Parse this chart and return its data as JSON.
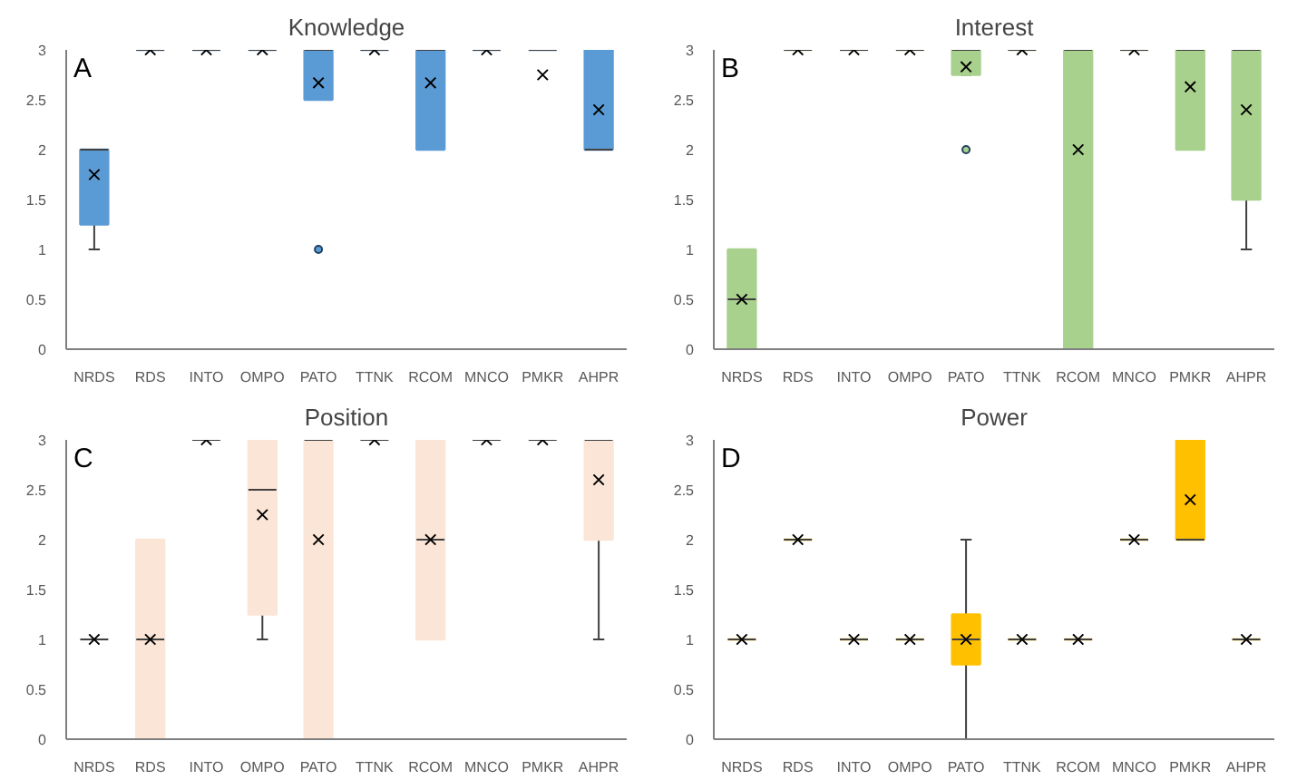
{
  "chart_data": [
    {
      "type": "box",
      "title": "Knowledge",
      "annotations": [
        "A"
      ],
      "color": "#5b9bd5",
      "categories": [
        "NRDS",
        "RDS",
        "INTO",
        "OMPO",
        "PATO",
        "TTNK",
        "RCOM",
        "MNCO",
        "PMKR",
        "AHPR"
      ],
      "ylim": [
        0,
        3
      ],
      "yticks": [
        0,
        0.5,
        1,
        1.5,
        2,
        2.5,
        3
      ],
      "marker": "cross",
      "boxes": [
        {
          "low": 1,
          "q1": 1.25,
          "median": 2,
          "q3": 2,
          "high": 2,
          "mean": 1.75
        },
        {
          "low": 3,
          "q1": 3,
          "median": 3,
          "q3": 3,
          "high": 3,
          "mean": 3
        },
        {
          "low": 3,
          "q1": 3,
          "median": 3,
          "q3": 3,
          "high": 3,
          "mean": 3
        },
        {
          "low": 3,
          "q1": 3,
          "median": 3,
          "q3": 3,
          "high": 3,
          "mean": 3
        },
        {
          "low": 2.5,
          "q1": 2.5,
          "median": 3,
          "q3": 3,
          "high": 3,
          "mean": 2.67,
          "outliers": [
            1
          ]
        },
        {
          "low": 3,
          "q1": 3,
          "median": 3,
          "q3": 3,
          "high": 3,
          "mean": 3
        },
        {
          "low": 2,
          "q1": 2,
          "median": 3,
          "q3": 3,
          "high": 3,
          "mean": 2.67
        },
        {
          "low": 3,
          "q1": 3,
          "median": 3,
          "q3": 3,
          "high": 3,
          "mean": 3
        },
        {
          "low": 3,
          "q1": 3,
          "median": 3,
          "q3": 3,
          "high": 3,
          "mean": 2.75
        },
        {
          "low": 2,
          "q1": 2,
          "median": 2,
          "q3": 3,
          "high": 3,
          "mean": 2.4
        }
      ]
    },
    {
      "type": "box",
      "title": "Interest",
      "annotations": [
        "B"
      ],
      "color": "#a9d18e",
      "categories": [
        "NRDS",
        "RDS",
        "INTO",
        "OMPO",
        "PATO",
        "TTNK",
        "RCOM",
        "MNCO",
        "PMKR",
        "AHPR"
      ],
      "ylim": [
        0,
        3
      ],
      "yticks": [
        0,
        0.5,
        1,
        1.5,
        2,
        2.5,
        3
      ],
      "marker": "cross",
      "boxes": [
        {
          "low": 0,
          "q1": 0,
          "median": 0.5,
          "q3": 1,
          "high": 1,
          "mean": 0.5
        },
        {
          "low": 3,
          "q1": 3,
          "median": 3,
          "q3": 3,
          "high": 3,
          "mean": 3
        },
        {
          "low": 3,
          "q1": 3,
          "median": 3,
          "q3": 3,
          "high": 3,
          "mean": 3
        },
        {
          "low": 3,
          "q1": 3,
          "median": 3,
          "q3": 3,
          "high": 3,
          "mean": 3
        },
        {
          "low": 2.75,
          "q1": 2.75,
          "median": 3,
          "q3": 3,
          "high": 3,
          "mean": 2.83,
          "outliers": [
            2
          ]
        },
        {
          "low": 3,
          "q1": 3,
          "median": 3,
          "q3": 3,
          "high": 3,
          "mean": 3
        },
        {
          "low": 0,
          "q1": 0,
          "median": 3,
          "q3": 3,
          "high": 3,
          "mean": 2
        },
        {
          "low": 3,
          "q1": 3,
          "median": 3,
          "q3": 3,
          "high": 3,
          "mean": 3
        },
        {
          "low": 2,
          "q1": 2,
          "median": 3,
          "q3": 3,
          "high": 3,
          "mean": 2.63
        },
        {
          "low": 1,
          "q1": 1.5,
          "median": 3,
          "q3": 3,
          "high": 3,
          "mean": 2.4
        }
      ]
    },
    {
      "type": "box",
      "title": "Position",
      "annotations": [
        "C"
      ],
      "color": "#fbe5d6",
      "categories": [
        "NRDS",
        "RDS",
        "INTO",
        "OMPO",
        "PATO",
        "TTNK",
        "RCOM",
        "MNCO",
        "PMKR",
        "AHPR"
      ],
      "ylim": [
        0,
        3
      ],
      "yticks": [
        0,
        0.5,
        1,
        1.5,
        2,
        2.5,
        3
      ],
      "marker": "cross",
      "boxes": [
        {
          "low": 1,
          "q1": 1,
          "median": 1,
          "q3": 1,
          "high": 1,
          "mean": 1
        },
        {
          "low": 0,
          "q1": 0,
          "median": 1,
          "q3": 2,
          "high": 2,
          "mean": 1
        },
        {
          "low": 3,
          "q1": 3,
          "median": 3,
          "q3": 3,
          "high": 3,
          "mean": 3
        },
        {
          "low": 1,
          "q1": 1.25,
          "median": 2.5,
          "q3": 3,
          "high": 3,
          "mean": 2.25
        },
        {
          "low": 0,
          "q1": 0,
          "median": 3,
          "q3": 3,
          "high": 3,
          "mean": 2
        },
        {
          "low": 3,
          "q1": 3,
          "median": 3,
          "q3": 3,
          "high": 3,
          "mean": 3
        },
        {
          "low": 1,
          "q1": 1,
          "median": 2,
          "q3": 3,
          "high": 3,
          "mean": 2
        },
        {
          "low": 3,
          "q1": 3,
          "median": 3,
          "q3": 3,
          "high": 3,
          "mean": 3
        },
        {
          "low": 3,
          "q1": 3,
          "median": 3,
          "q3": 3,
          "high": 3,
          "mean": 3
        },
        {
          "low": 1,
          "q1": 2,
          "median": 3,
          "q3": 3,
          "high": 3,
          "mean": 2.6
        }
      ]
    },
    {
      "type": "box",
      "title": "Power",
      "annotations": [
        "D"
      ],
      "color": "#ffc000",
      "categories": [
        "NRDS",
        "RDS",
        "INTO",
        "OMPO",
        "PATO",
        "TTNK",
        "RCOM",
        "MNCO",
        "PMKR",
        "AHPR"
      ],
      "ylim": [
        0,
        3
      ],
      "yticks": [
        0,
        0.5,
        1,
        1.5,
        2,
        2.5,
        3
      ],
      "marker": "cross",
      "boxes": [
        {
          "low": 1,
          "q1": 1,
          "median": 1,
          "q3": 1,
          "high": 1,
          "mean": 1
        },
        {
          "low": 2,
          "q1": 2,
          "median": 2,
          "q3": 2,
          "high": 2,
          "mean": 2
        },
        {
          "low": 1,
          "q1": 1,
          "median": 1,
          "q3": 1,
          "high": 1,
          "mean": 1
        },
        {
          "low": 1,
          "q1": 1,
          "median": 1,
          "q3": 1,
          "high": 1,
          "mean": 1
        },
        {
          "low": 0,
          "q1": 0.75,
          "median": 1,
          "q3": 1.25,
          "high": 2,
          "mean": 1
        },
        {
          "low": 1,
          "q1": 1,
          "median": 1,
          "q3": 1,
          "high": 1,
          "mean": 1
        },
        {
          "low": 1,
          "q1": 1,
          "median": 1,
          "q3": 1,
          "high": 1,
          "mean": 1
        },
        {
          "low": 2,
          "q1": 2,
          "median": 2,
          "q3": 2,
          "high": 2,
          "mean": 2
        },
        {
          "low": 2,
          "q1": 2,
          "median": 2,
          "q3": 3,
          "high": 3,
          "mean": 2.4
        },
        {
          "low": 1,
          "q1": 1,
          "median": 1,
          "q3": 1,
          "high": 1,
          "mean": 1
        }
      ]
    }
  ]
}
